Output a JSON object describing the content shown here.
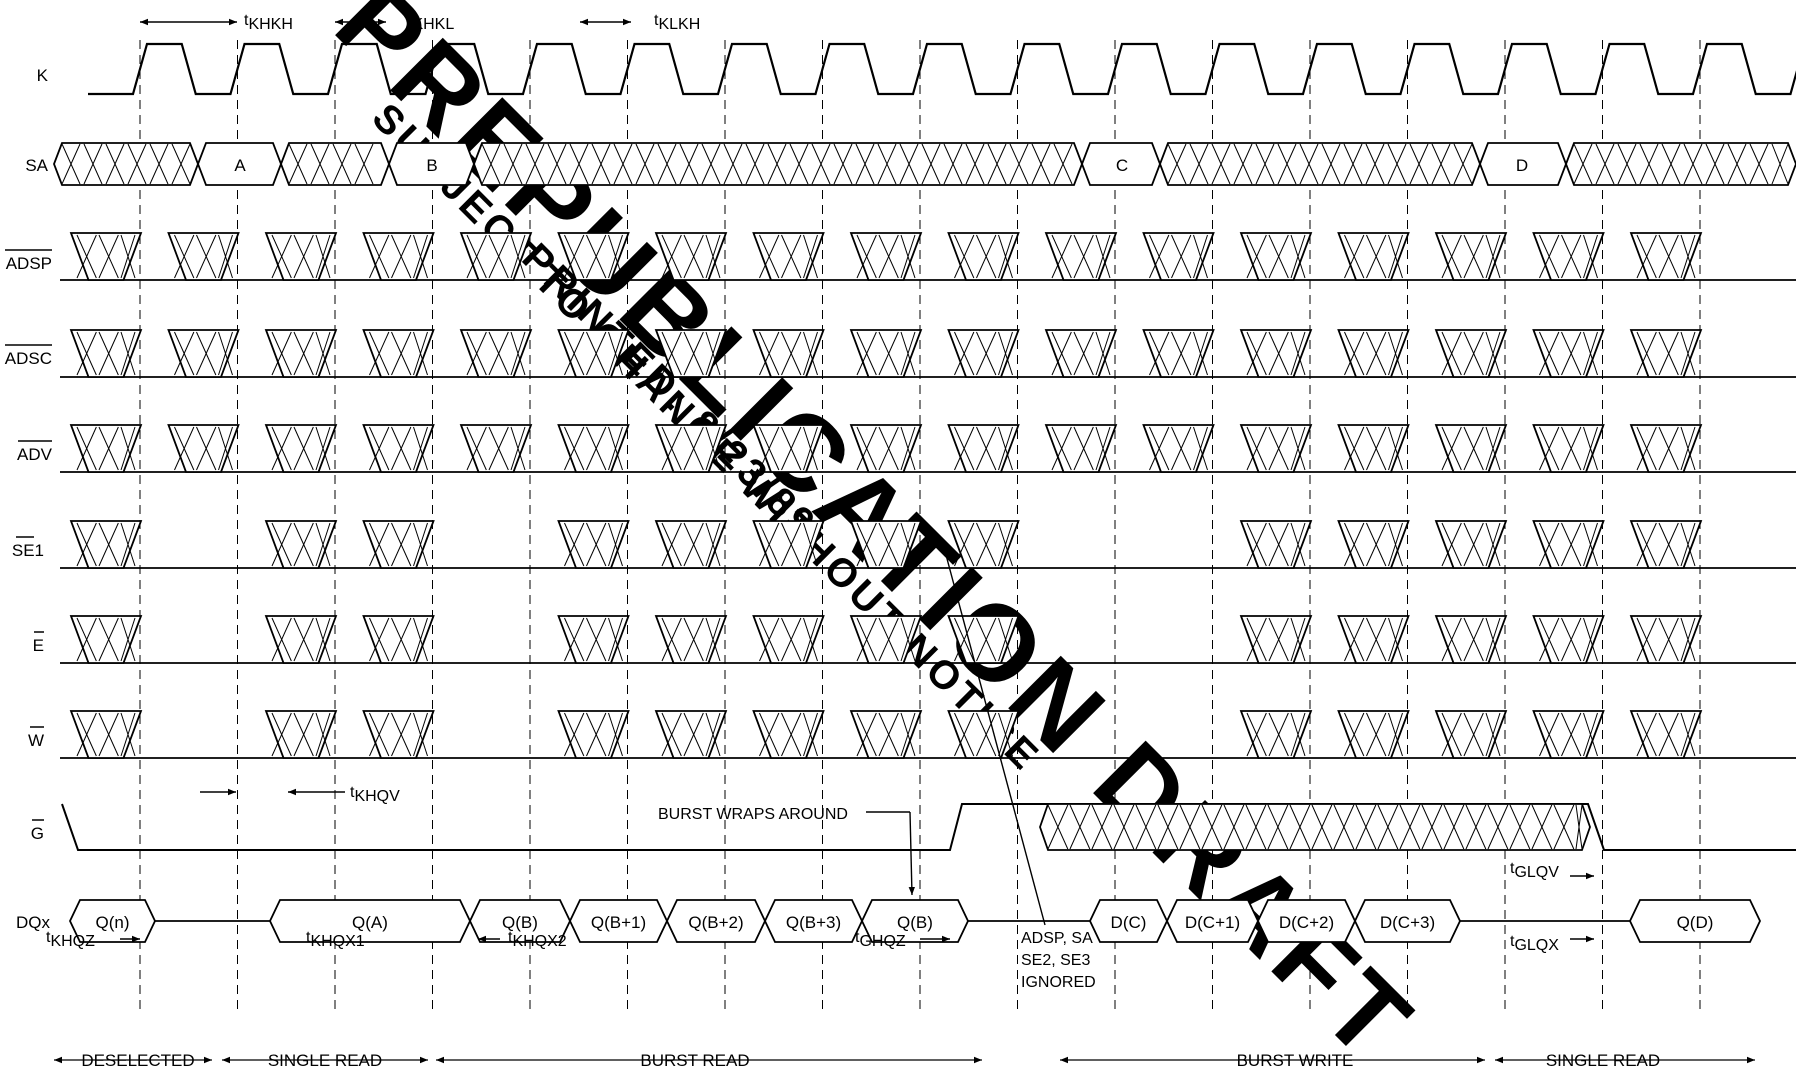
{
  "signals": {
    "k": "K",
    "sa": "SA",
    "adsp": "ADSP",
    "adsc": "ADSC",
    "adv": "ADV",
    "se1": "SE1",
    "e": "E",
    "w": "W",
    "g": "G",
    "dqx": "DQx"
  },
  "sa_addresses": [
    "A",
    "B",
    "C",
    "D"
  ],
  "dq_data": [
    "Q(n)",
    "Q(A)",
    "Q(B)",
    "Q(B+1)",
    "Q(B+2)",
    "Q(B+3)",
    "Q(B)",
    "D(C)",
    "D(C+1)",
    "D(C+2)",
    "D(C+3)",
    "Q(D)"
  ],
  "timing": {
    "khkh": "KHKH",
    "khkl": "KHKL",
    "klkh": "KLKH",
    "khqv": "KHQV",
    "khqz": "KHQZ",
    "khqx1": "KHQX1",
    "khqx2": "KHQX2",
    "ghqz": "GHQZ",
    "glqv": "GLQV",
    "glqx": "GLQX"
  },
  "annotations": {
    "burst_wraps": "BURST WRAPS AROUND",
    "ignored_line1": "ADSP, SA",
    "ignored_line2": "SE2, SE3",
    "ignored_line3": "IGNORED"
  },
  "phases": [
    "DESELECTED",
    "SINGLE READ",
    "BURST READ",
    "BURST WRITE",
    "SINGLE READ"
  ],
  "watermark": {
    "line1": "PREPUBLICATION DRAFT",
    "line2": "SUBJECT TO CHANGE WITHOUT NOTICE",
    "line3": "PRINTED: 8/23/89"
  },
  "colors": {
    "ink": "#000000",
    "watermark": "#cfcfcf"
  }
}
